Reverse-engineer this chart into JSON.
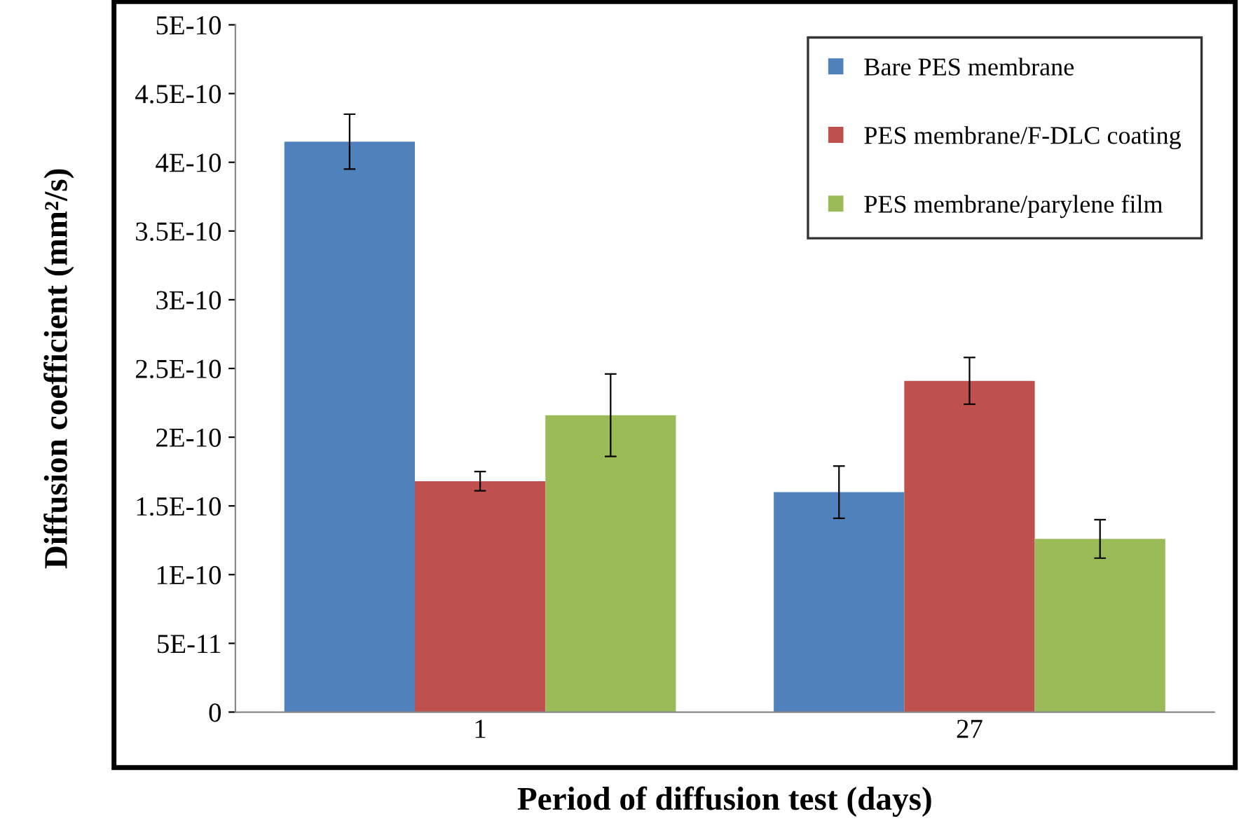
{
  "chart_data": {
    "type": "bar",
    "xlabel": "Period of diffusion test (days)",
    "ylabel": "Diffusion coefficient (mm²/s)",
    "categories": [
      "1",
      "27"
    ],
    "series": [
      {
        "name": "Bare PES membrane",
        "color": "#4f81bd",
        "values": [
          4.15e-10,
          1.6e-10
        ],
        "errors": [
          2e-11,
          1.9e-11
        ]
      },
      {
        "name": "PES membrane/F-DLC coating",
        "color": "#c0504d",
        "values": [
          1.68e-10,
          2.41e-10
        ],
        "errors": [
          7e-12,
          1.7e-11
        ]
      },
      {
        "name": "PES membrane/parylene film",
        "color": "#9bbb59",
        "values": [
          2.16e-10,
          1.26e-10
        ],
        "errors": [
          3e-11,
          1.4e-11
        ]
      }
    ],
    "ylim": [
      0,
      5e-10
    ],
    "yticks": [
      0,
      {
        "value": 5e-11,
        "label": "5E-11"
      },
      {
        "value": 1e-10,
        "label": "1E-10"
      },
      {
        "value": 1.5e-10,
        "label": "1.5E-10"
      },
      {
        "value": 2e-10,
        "label": "2E-10"
      },
      {
        "value": 2.5e-10,
        "label": "2.5E-10"
      },
      {
        "value": 3e-10,
        "label": "3E-10"
      },
      {
        "value": 3.5e-10,
        "label": "3.5E-10"
      },
      {
        "value": 4e-10,
        "label": "4E-10"
      },
      {
        "value": 4.5e-10,
        "label": "4.5E-10"
      },
      {
        "value": 5e-10,
        "label": "5E-10"
      }
    ],
    "grid": false,
    "legend": "top right"
  }
}
